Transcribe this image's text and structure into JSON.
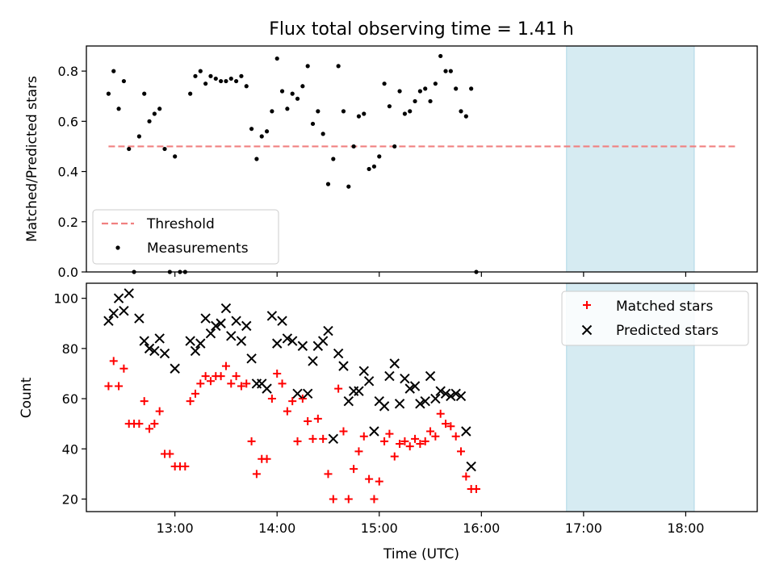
{
  "chart_data": [
    {
      "type": "scatter",
      "title": "Flux total observing time = 1.41 h",
      "ylabel": "Matched/Predicted stars",
      "xlabel": "",
      "ylim": [
        0,
        0.9
      ],
      "yticks": [
        0.0,
        0.2,
        0.4,
        0.6,
        0.8
      ],
      "ytick_labels": [
        "0.0",
        "0.2",
        "0.4",
        "0.6",
        "0.8"
      ],
      "xlim": [
        "12:08",
        "18:42"
      ],
      "xticks": [
        "13:00",
        "14:00",
        "15:00",
        "16:00",
        "17:00",
        "18:00"
      ],
      "legend_placement": "lower left",
      "shaded_interval": [
        "16:50",
        "18:05"
      ],
      "threshold": {
        "name": "Threshold",
        "value": 0.5,
        "x_start": "12:21",
        "x_end": "18:30",
        "color": "#f08080",
        "style": "dashed"
      },
      "series": [
        {
          "name": "Measurements",
          "color": "#000000",
          "marker": "dot",
          "points": [
            [
              "12:21",
              0.71
            ],
            [
              "12:24",
              0.8
            ],
            [
              "12:27",
              0.65
            ],
            [
              "12:30",
              0.76
            ],
            [
              "12:33",
              0.49
            ],
            [
              "12:36",
              0.0
            ],
            [
              "12:39",
              0.54
            ],
            [
              "12:42",
              0.71
            ],
            [
              "12:45",
              0.6
            ],
            [
              "12:48",
              0.63
            ],
            [
              "12:51",
              0.65
            ],
            [
              "12:54",
              0.49
            ],
            [
              "12:57",
              0.0
            ],
            [
              "13:00",
              0.46
            ],
            [
              "13:03",
              0.0
            ],
            [
              "13:06",
              0.0
            ],
            [
              "13:09",
              0.71
            ],
            [
              "13:12",
              0.78
            ],
            [
              "13:15",
              0.8
            ],
            [
              "13:18",
              0.75
            ],
            [
              "13:21",
              0.78
            ],
            [
              "13:24",
              0.77
            ],
            [
              "13:27",
              0.76
            ],
            [
              "13:30",
              0.76
            ],
            [
              "13:33",
              0.77
            ],
            [
              "13:36",
              0.76
            ],
            [
              "13:39",
              0.78
            ],
            [
              "13:42",
              0.74
            ],
            [
              "13:45",
              0.57
            ],
            [
              "13:48",
              0.45
            ],
            [
              "13:51",
              0.54
            ],
            [
              "13:54",
              0.56
            ],
            [
              "13:57",
              0.64
            ],
            [
              "14:00",
              0.85
            ],
            [
              "14:03",
              0.72
            ],
            [
              "14:06",
              0.65
            ],
            [
              "14:09",
              0.71
            ],
            [
              "14:12",
              0.69
            ],
            [
              "14:15",
              0.74
            ],
            [
              "14:18",
              0.82
            ],
            [
              "14:21",
              0.59
            ],
            [
              "14:24",
              0.64
            ],
            [
              "14:27",
              0.55
            ],
            [
              "14:30",
              0.35
            ],
            [
              "14:33",
              0.45
            ],
            [
              "14:36",
              0.82
            ],
            [
              "14:39",
              0.64
            ],
            [
              "14:42",
              0.34
            ],
            [
              "14:45",
              0.5
            ],
            [
              "14:48",
              0.62
            ],
            [
              "14:51",
              0.63
            ],
            [
              "14:54",
              0.41
            ],
            [
              "14:57",
              0.42
            ],
            [
              "15:00",
              0.46
            ],
            [
              "15:03",
              0.75
            ],
            [
              "15:06",
              0.66
            ],
            [
              "15:09",
              0.5
            ],
            [
              "15:12",
              0.72
            ],
            [
              "15:15",
              0.63
            ],
            [
              "15:18",
              0.64
            ],
            [
              "15:21",
              0.68
            ],
            [
              "15:24",
              0.72
            ],
            [
              "15:27",
              0.73
            ],
            [
              "15:30",
              0.68
            ],
            [
              "15:33",
              0.75
            ],
            [
              "15:36",
              0.86
            ],
            [
              "15:39",
              0.8
            ],
            [
              "15:42",
              0.8
            ],
            [
              "15:45",
              0.73
            ],
            [
              "15:48",
              0.64
            ],
            [
              "15:51",
              0.62
            ],
            [
              "15:54",
              0.73
            ],
            [
              "15:57",
              0.0
            ]
          ]
        }
      ]
    },
    {
      "type": "scatter",
      "title": "",
      "xlabel": "Time (UTC)",
      "ylabel": "Count",
      "ylim": [
        15,
        106
      ],
      "yticks": [
        20,
        40,
        60,
        80,
        100
      ],
      "ytick_labels": [
        "20",
        "40",
        "60",
        "80",
        "100"
      ],
      "xlim": [
        "12:08",
        "18:42"
      ],
      "xticks": [
        "13:00",
        "14:00",
        "15:00",
        "16:00",
        "17:00",
        "18:00"
      ],
      "legend_placement": "upper right",
      "shaded_interval": [
        "16:50",
        "18:05"
      ],
      "series": [
        {
          "name": "Matched stars",
          "color": "#ff0000",
          "marker": "plus",
          "points": [
            [
              "12:21",
              65
            ],
            [
              "12:24",
              75
            ],
            [
              "12:27",
              65
            ],
            [
              "12:30",
              72
            ],
            [
              "12:33",
              50
            ],
            [
              "12:36",
              50
            ],
            [
              "12:39",
              50
            ],
            [
              "12:42",
              59
            ],
            [
              "12:45",
              48
            ],
            [
              "12:48",
              50
            ],
            [
              "12:51",
              55
            ],
            [
              "12:54",
              38
            ],
            [
              "12:57",
              38
            ],
            [
              "13:00",
              33
            ],
            [
              "13:03",
              33
            ],
            [
              "13:06",
              33
            ],
            [
              "13:09",
              59
            ],
            [
              "13:12",
              62
            ],
            [
              "13:15",
              66
            ],
            [
              "13:18",
              69
            ],
            [
              "13:21",
              67
            ],
            [
              "13:24",
              69
            ],
            [
              "13:27",
              69
            ],
            [
              "13:30",
              73
            ],
            [
              "13:33",
              66
            ],
            [
              "13:36",
              69
            ],
            [
              "13:39",
              65
            ],
            [
              "13:42",
              66
            ],
            [
              "13:45",
              43
            ],
            [
              "13:48",
              30
            ],
            [
              "13:51",
              36
            ],
            [
              "13:54",
              36
            ],
            [
              "13:57",
              60
            ],
            [
              "14:00",
              70
            ],
            [
              "14:03",
              66
            ],
            [
              "14:06",
              55
            ],
            [
              "14:09",
              59
            ],
            [
              "14:12",
              43
            ],
            [
              "14:15",
              60
            ],
            [
              "14:18",
              51
            ],
            [
              "14:21",
              44
            ],
            [
              "14:24",
              52
            ],
            [
              "14:27",
              44
            ],
            [
              "14:30",
              30
            ],
            [
              "14:33",
              20
            ],
            [
              "14:36",
              64
            ],
            [
              "14:39",
              47
            ],
            [
              "14:42",
              20
            ],
            [
              "14:45",
              32
            ],
            [
              "14:48",
              39
            ],
            [
              "14:51",
              45
            ],
            [
              "14:54",
              28
            ],
            [
              "14:57",
              20
            ],
            [
              "15:00",
              27
            ],
            [
              "15:03",
              43
            ],
            [
              "15:06",
              46
            ],
            [
              "15:09",
              37
            ],
            [
              "15:12",
              42
            ],
            [
              "15:15",
              43
            ],
            [
              "15:18",
              41
            ],
            [
              "15:21",
              44
            ],
            [
              "15:24",
              42
            ],
            [
              "15:27",
              43
            ],
            [
              "15:30",
              47
            ],
            [
              "15:33",
              45
            ],
            [
              "15:36",
              54
            ],
            [
              "15:39",
              50
            ],
            [
              "15:42",
              49
            ],
            [
              "15:45",
              45
            ],
            [
              "15:48",
              39
            ],
            [
              "15:51",
              29
            ],
            [
              "15:54",
              24
            ],
            [
              "15:57",
              24
            ]
          ]
        },
        {
          "name": "Predicted stars",
          "color": "#000000",
          "marker": "x",
          "points": [
            [
              "12:21",
              91
            ],
            [
              "12:24",
              94
            ],
            [
              "12:27",
              100
            ],
            [
              "12:30",
              95
            ],
            [
              "12:33",
              102
            ],
            [
              "12:39",
              92
            ],
            [
              "12:42",
              83
            ],
            [
              "12:45",
              80
            ],
            [
              "12:48",
              79
            ],
            [
              "12:51",
              84
            ],
            [
              "12:54",
              78
            ],
            [
              "13:00",
              72
            ],
            [
              "13:09",
              83
            ],
            [
              "13:12",
              79
            ],
            [
              "13:15",
              82
            ],
            [
              "13:18",
              92
            ],
            [
              "13:21",
              86
            ],
            [
              "13:24",
              89
            ],
            [
              "13:27",
              90
            ],
            [
              "13:30",
              96
            ],
            [
              "13:33",
              85
            ],
            [
              "13:36",
              91
            ],
            [
              "13:39",
              83
            ],
            [
              "13:42",
              89
            ],
            [
              "13:45",
              76
            ],
            [
              "13:48",
              66
            ],
            [
              "13:51",
              66
            ],
            [
              "13:54",
              64
            ],
            [
              "13:57",
              93
            ],
            [
              "14:00",
              82
            ],
            [
              "14:03",
              91
            ],
            [
              "14:06",
              84
            ],
            [
              "14:09",
              83
            ],
            [
              "14:12",
              62
            ],
            [
              "14:15",
              81
            ],
            [
              "14:18",
              62
            ],
            [
              "14:21",
              75
            ],
            [
              "14:24",
              81
            ],
            [
              "14:27",
              83
            ],
            [
              "14:30",
              87
            ],
            [
              "14:33",
              44
            ],
            [
              "14:36",
              78
            ],
            [
              "14:39",
              73
            ],
            [
              "14:42",
              59
            ],
            [
              "14:45",
              63
            ],
            [
              "14:48",
              63
            ],
            [
              "14:51",
              71
            ],
            [
              "14:54",
              67
            ],
            [
              "14:57",
              47
            ],
            [
              "15:00",
              59
            ],
            [
              "15:03",
              57
            ],
            [
              "15:06",
              69
            ],
            [
              "15:09",
              74
            ],
            [
              "15:12",
              58
            ],
            [
              "15:15",
              68
            ],
            [
              "15:18",
              64
            ],
            [
              "15:21",
              65
            ],
            [
              "15:24",
              58
            ],
            [
              "15:27",
              59
            ],
            [
              "15:30",
              69
            ],
            [
              "15:33",
              60
            ],
            [
              "15:36",
              63
            ],
            [
              "15:39",
              62
            ],
            [
              "15:42",
              61
            ],
            [
              "15:45",
              62
            ],
            [
              "15:48",
              61
            ],
            [
              "15:51",
              47
            ],
            [
              "15:54",
              33
            ]
          ]
        }
      ]
    }
  ]
}
